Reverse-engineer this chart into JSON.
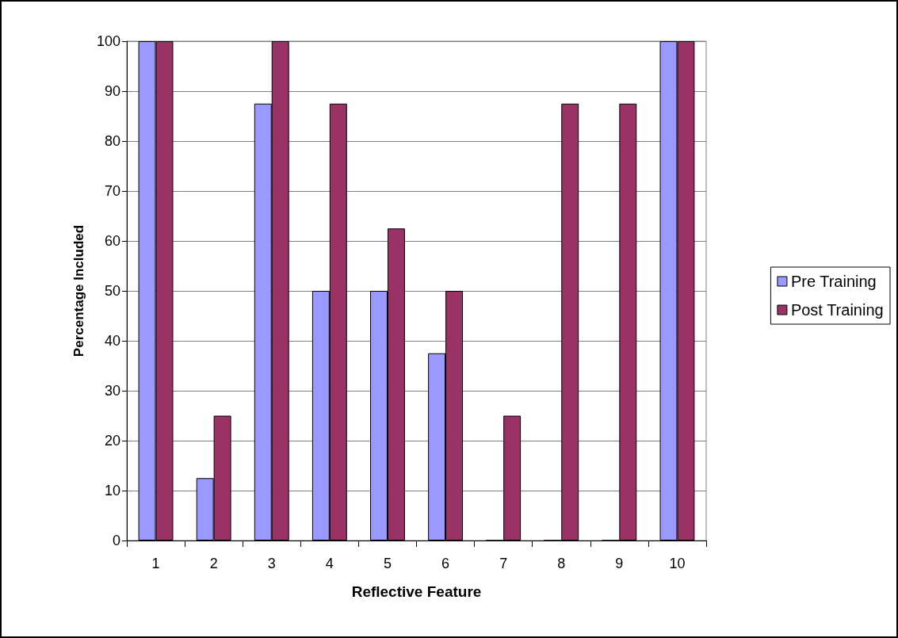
{
  "chart_data": {
    "type": "bar",
    "xlabel": "Reflective Feature",
    "ylabel": "Percentage Included",
    "categories": [
      "1",
      "2",
      "3",
      "4",
      "5",
      "6",
      "7",
      "8",
      "9",
      "10"
    ],
    "series": [
      {
        "name": "Pre Training",
        "color": "#9999ff",
        "values": [
          100,
          12.5,
          87.5,
          50,
          50,
          37.5,
          0,
          0,
          0,
          100
        ]
      },
      {
        "name": "Post Training",
        "color": "#993366",
        "values": [
          100,
          25,
          100,
          87.5,
          62.5,
          50,
          25,
          87.5,
          87.5,
          100
        ]
      }
    ],
    "ylim": [
      0,
      100
    ],
    "yticks": [
      0,
      10,
      20,
      30,
      40,
      50,
      60,
      70,
      80,
      90,
      100
    ],
    "grid": "y",
    "legend": "right"
  }
}
